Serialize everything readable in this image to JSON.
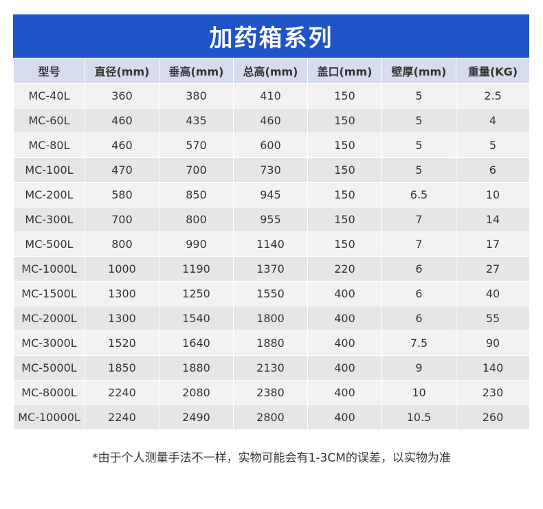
{
  "title": "加药箱系列",
  "table": {
    "headers": [
      "型号",
      "直径(mm)",
      "垂高(mm)",
      "总高(mm)",
      "盖口(mm)",
      "壁厚(mm)",
      "重量(KG)"
    ],
    "rows": [
      [
        "MC-40L",
        "360",
        "380",
        "410",
        "150",
        "5",
        "2.5"
      ],
      [
        "MC-60L",
        "460",
        "435",
        "460",
        "150",
        "5",
        "4"
      ],
      [
        "MC-80L",
        "460",
        "570",
        "600",
        "150",
        "5",
        "5"
      ],
      [
        "MC-100L",
        "470",
        "700",
        "730",
        "150",
        "5",
        "6"
      ],
      [
        "MC-200L",
        "580",
        "850",
        "945",
        "150",
        "6.5",
        "10"
      ],
      [
        "MC-300L",
        "700",
        "800",
        "955",
        "150",
        "7",
        "14"
      ],
      [
        "MC-500L",
        "800",
        "990",
        "1140",
        "150",
        "7",
        "17"
      ],
      [
        "MC-1000L",
        "1000",
        "1190",
        "1370",
        "220",
        "6",
        "27"
      ],
      [
        "MC-1500L",
        "1300",
        "1250",
        "1550",
        "400",
        "6",
        "40"
      ],
      [
        "MC-2000L",
        "1300",
        "1540",
        "1800",
        "400",
        "6",
        "55"
      ],
      [
        "MC-3000L",
        "1520",
        "1640",
        "1880",
        "400",
        "7.5",
        "90"
      ],
      [
        "MC-5000L",
        "1850",
        "1880",
        "2130",
        "400",
        "9",
        "140"
      ],
      [
        "MC-8000L",
        "2240",
        "2080",
        "2380",
        "400",
        "10",
        "230"
      ],
      [
        "MC-10000L",
        "2240",
        "2490",
        "2800",
        "400",
        "10.5",
        "260"
      ]
    ]
  },
  "note": "*由于个人测量手法不一样，实物可能会有1-3CM的误差，以实物为准",
  "colors": {
    "title_bg": "#1f53c8",
    "header_bg": "#d6dcec",
    "row_odd": "#f2f2f2",
    "row_even": "#e6e6e6"
  }
}
